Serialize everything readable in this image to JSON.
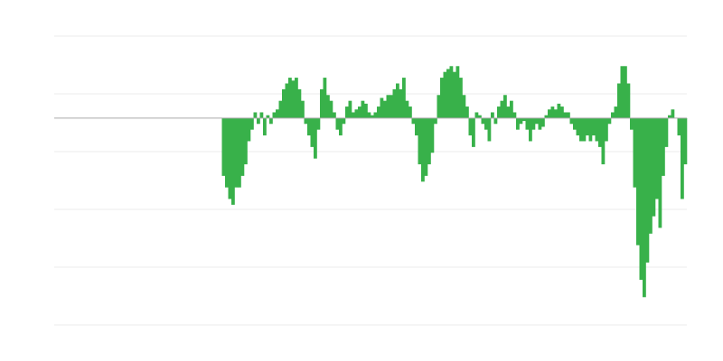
{
  "chart_data": {
    "type": "bar",
    "title": "",
    "xlabel": "",
    "ylabel": "",
    "ylim": [
      -35.8,
      14.2
    ],
    "gridlines": [
      14.2,
      4.2,
      -5.8,
      -15.8,
      -25.8,
      -35.8
    ],
    "grid": true,
    "legend": "none",
    "bar_color": "#38b14a",
    "zero_line_color": "#aaaaaa",
    "grid_color": "#ebebeb",
    "leading_empty_bars": 53,
    "values": [
      -10,
      -12,
      -14,
      -15,
      -12,
      -12,
      -10,
      -8,
      -4,
      -2,
      1,
      -1,
      1,
      -3,
      0.5,
      -1,
      1,
      1.5,
      3,
      5,
      6,
      7,
      6.5,
      7,
      5,
      3,
      -1,
      -3,
      -5,
      -7,
      -2,
      5,
      7,
      4,
      3,
      1,
      -2,
      -3,
      -1,
      2,
      3,
      1,
      1.5,
      2,
      3,
      2.5,
      1,
      0.5,
      1,
      2,
      3.5,
      3,
      4,
      4,
      5,
      6,
      5,
      7,
      3,
      2,
      -1,
      -3,
      -8,
      -11,
      -10,
      -8,
      -6,
      -1,
      4,
      7,
      8,
      8.5,
      9,
      8,
      9,
      7,
      4,
      2,
      -3,
      -5,
      1,
      0.5,
      -1,
      -2,
      -4,
      1,
      -1,
      2,
      3,
      4,
      2,
      3,
      1,
      -2,
      -1,
      -0.5,
      -2,
      -4,
      -2,
      -1,
      -2,
      -1.5,
      0.5,
      1.5,
      2,
      1.5,
      2.5,
      2,
      1,
      1,
      -1,
      -2,
      -3,
      -4,
      -4,
      -3,
      -4,
      -3,
      -4,
      -5,
      -8,
      -4,
      -1,
      1,
      2,
      6,
      9,
      9,
      6,
      -2,
      -12,
      -22,
      -28,
      -31,
      -25,
      -20,
      -17,
      -14,
      -19,
      -10,
      -5,
      0.5,
      1.5,
      0,
      -3,
      -14,
      -8
    ]
  }
}
